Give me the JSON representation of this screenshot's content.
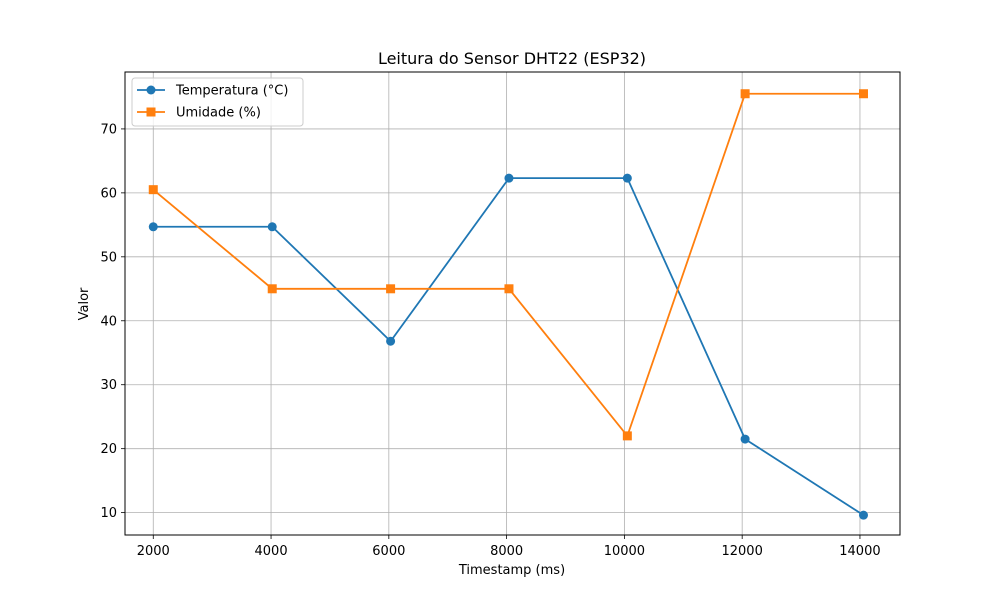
{
  "chart_data": {
    "type": "line",
    "title": "Leitura do Sensor DHT22 (ESP32)",
    "xlabel": "Timestamp (ms)",
    "ylabel": "Valor",
    "x": [
      2000,
      4020,
      6030,
      8040,
      10050,
      12050,
      14060
    ],
    "xticks": [
      2000,
      4000,
      6000,
      8000,
      10000,
      12000,
      14000
    ],
    "yticks": [
      10,
      20,
      30,
      40,
      50,
      60,
      70
    ],
    "xlim": [
      1520,
      14680
    ],
    "ylim": [
      6.5,
      78.9
    ],
    "grid": true,
    "legend_position": "top-left",
    "series": [
      {
        "name": "Temperatura (°C)",
        "color": "#1f77b4",
        "marker": "circle",
        "values": [
          54.7,
          54.7,
          36.8,
          62.3,
          62.3,
          21.5,
          9.6
        ]
      },
      {
        "name": "Umidade (%)",
        "color": "#ff7f0e",
        "marker": "square",
        "values": [
          60.5,
          45.0,
          45.0,
          45.0,
          22.0,
          75.5,
          75.5
        ]
      }
    ]
  }
}
